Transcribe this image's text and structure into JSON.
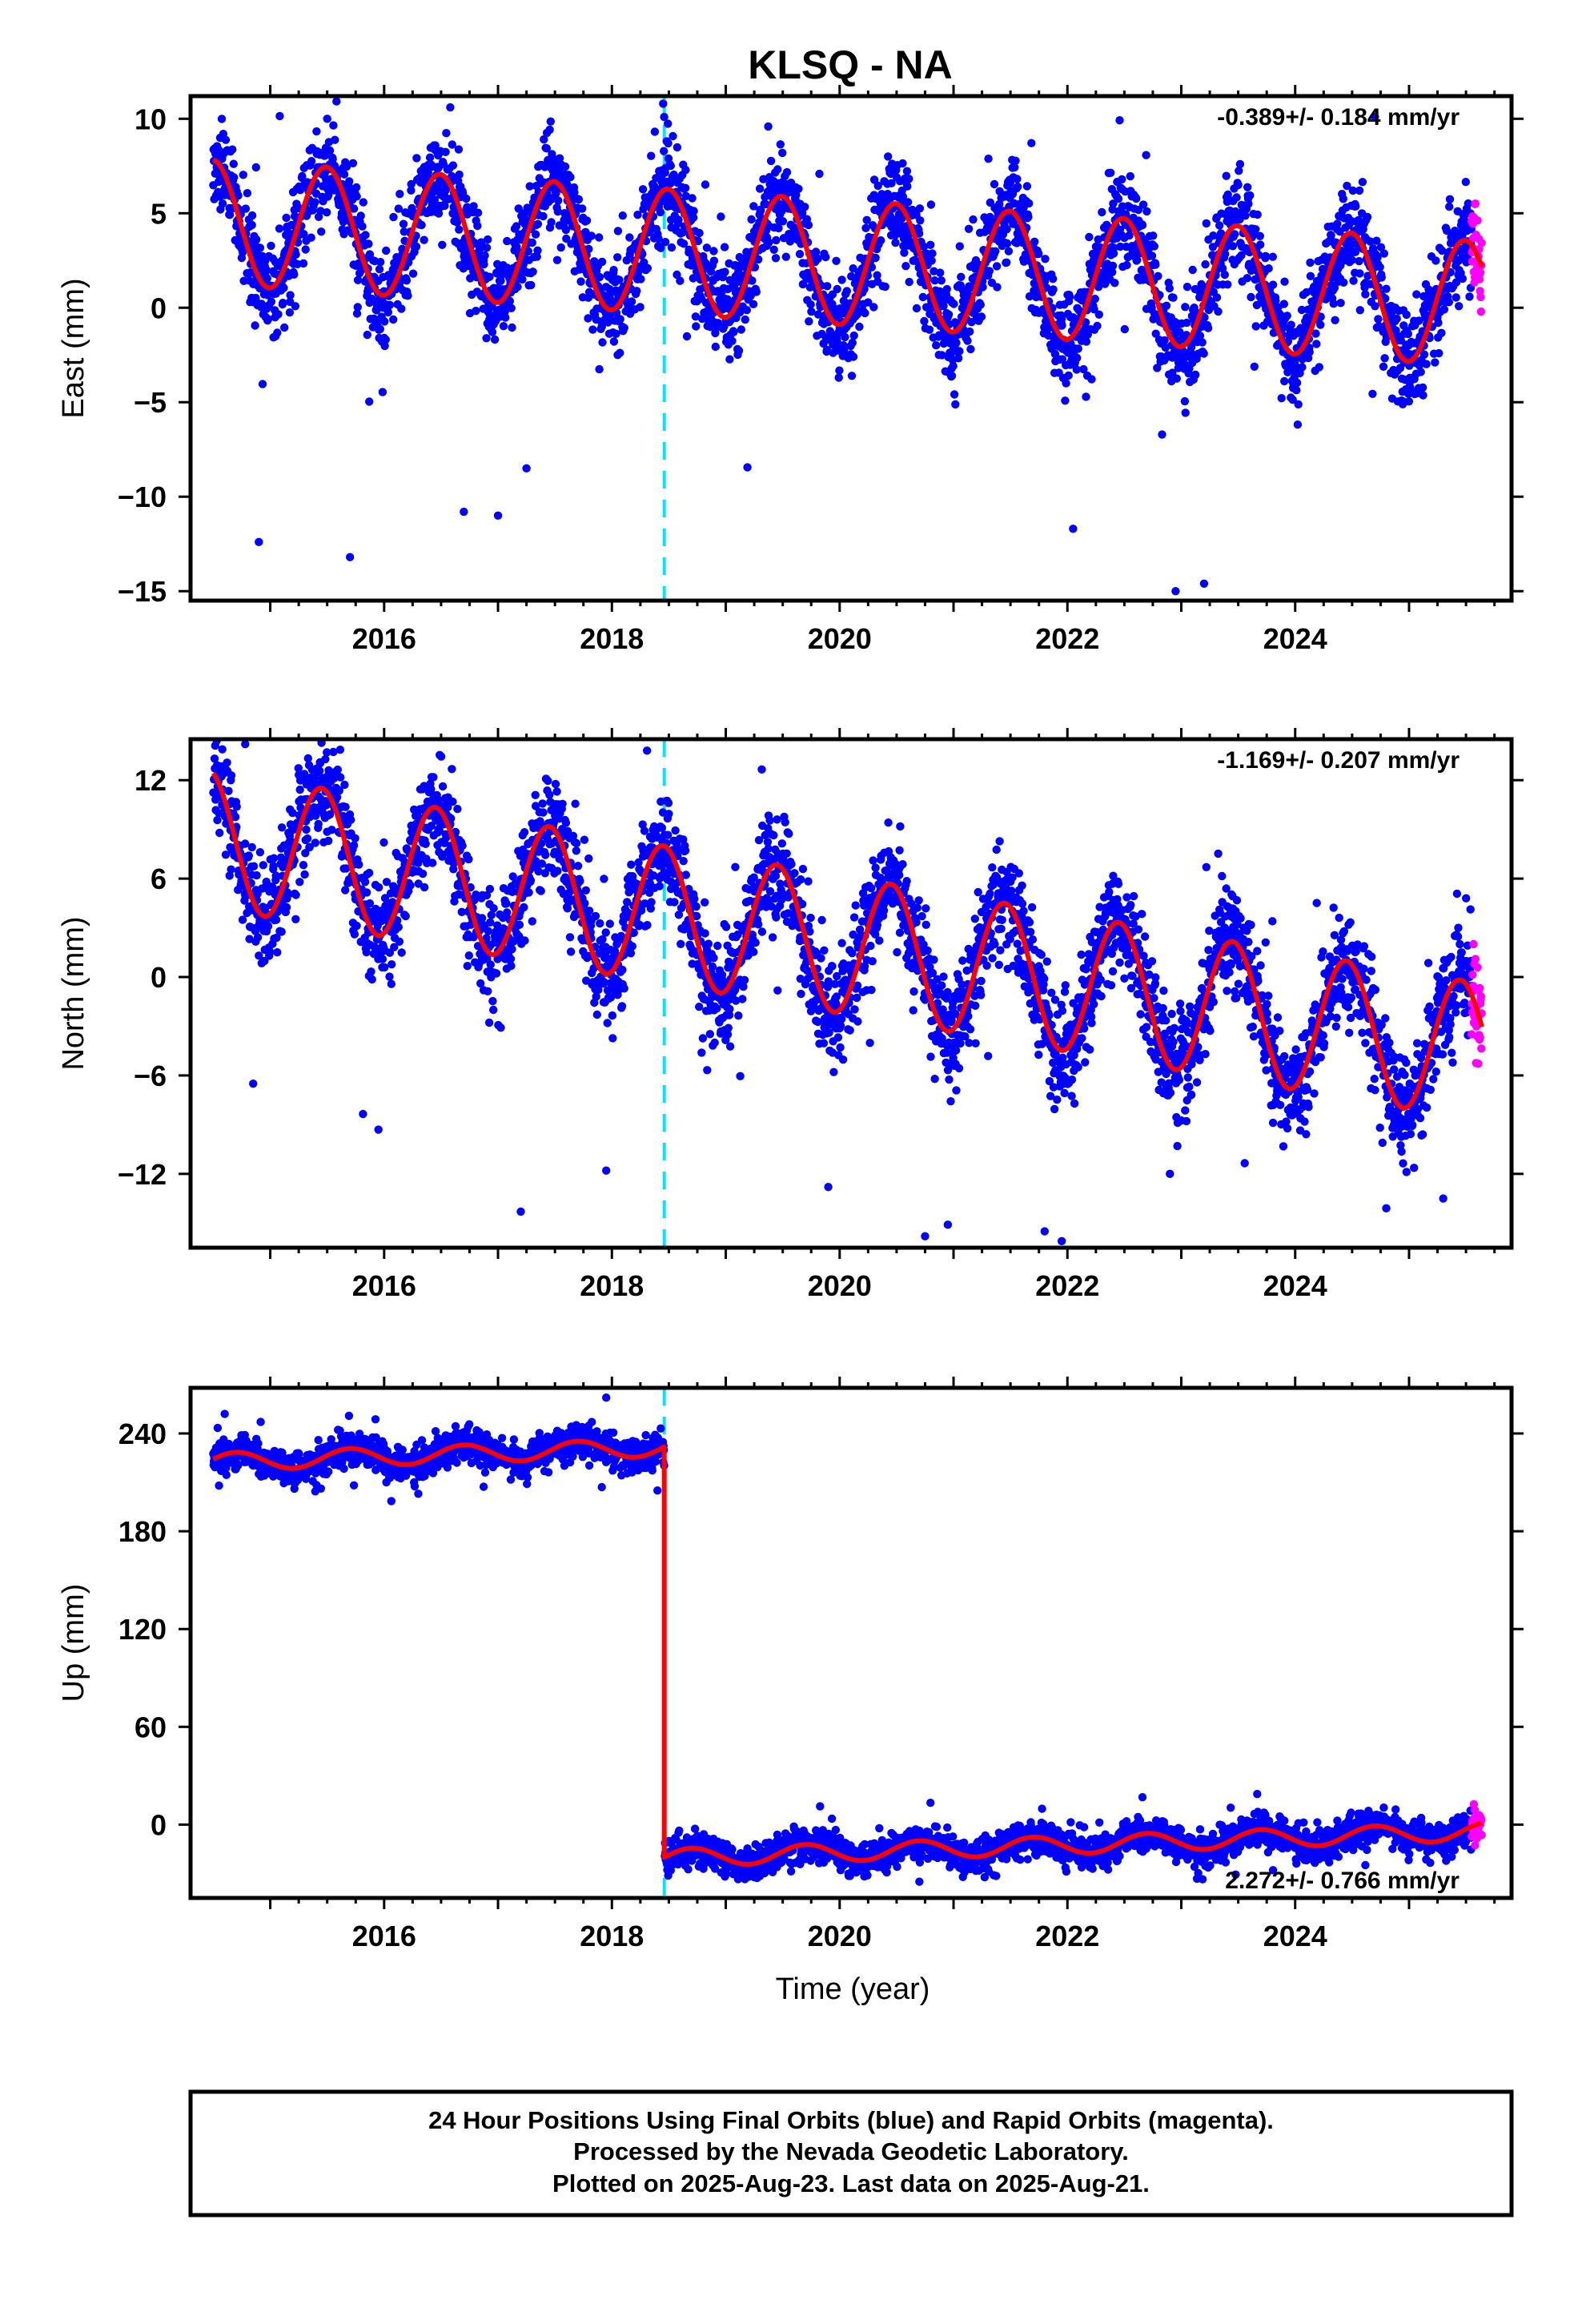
{
  "title": "KLSQ - NA",
  "colors": {
    "final_orbits": "#0000ff",
    "rapid_orbits": "#ff00ff",
    "model": "#ff0000",
    "offset_line": "#00e5ff"
  },
  "chart_data": [
    {
      "type": "scatter",
      "ylabel": "East (mm)",
      "xlabel": "",
      "xlim": [
        2014.3,
        2025.9
      ],
      "ylim": [
        -15.5,
        11.2
      ],
      "xticks": [
        "2016",
        "2018",
        "2020",
        "2022",
        "2024"
      ],
      "yticks": [
        "10",
        "5",
        "0",
        "−5",
        "−10",
        "−15"
      ],
      "rate": "-0.389+/- 0.184 mm/yr",
      "rate_position": "top-right",
      "offset_epoch": 2018.46,
      "model": {
        "trend_mm_per_yr": -0.389,
        "intercept_mm": 2.4,
        "annual_amplitude_mm": 3.3,
        "annual_phase_year": 2015.49,
        "offset_mm": 0
      },
      "scatter_sd_mm": 1.3,
      "series": [
        {
          "name": "Final Orbits (blue)",
          "x_range": [
            2014.5,
            2025.55
          ],
          "daily": true
        },
        {
          "name": "Rapid Orbits (magenta)",
          "x_range": [
            2025.55,
            2025.64
          ],
          "daily": true
        }
      ],
      "outliers": [
        {
          "x": 2014.9,
          "y": -12.4
        },
        {
          "x": 2015.7,
          "y": -13.2
        },
        {
          "x": 2016.7,
          "y": -10.8
        },
        {
          "x": 2017.0,
          "y": -11.0
        },
        {
          "x": 2018.45,
          "y": 10.8
        },
        {
          "x": 2015.5,
          "y": 10.0
        },
        {
          "x": 2022.95,
          "y": -15.0
        },
        {
          "x": 2023.2,
          "y": -14.6
        },
        {
          "x": 2023.5,
          "y": 6.5
        },
        {
          "x": 2024.7,
          "y": 10.1
        },
        {
          "x": 2017.25,
          "y": -8.5
        },
        {
          "x": 2022.05,
          "y": -11.7
        }
      ]
    },
    {
      "type": "scatter",
      "ylabel": "North (mm)",
      "xlabel": "",
      "xlim": [
        2014.3,
        2025.9
      ],
      "ylim": [
        -16.5,
        14.5
      ],
      "xticks": [
        "2016",
        "2018",
        "2020",
        "2022",
        "2024"
      ],
      "yticks": [
        "12",
        "6",
        "0",
        "−6",
        "−12"
      ],
      "rate": "-1.169+/- 0.207 mm/yr",
      "rate_position": "top-right",
      "offset_epoch": 2018.46,
      "model": {
        "trend_mm_per_yr": -1.169,
        "intercept_mm": 2.0,
        "annual_amplitude_mm": 4.2,
        "annual_phase_year": 2015.45,
        "offset_mm": 0
      },
      "scatter_sd_mm": 1.6,
      "series": [
        {
          "name": "Final Orbits (blue)",
          "x_range": [
            2014.5,
            2025.55
          ],
          "daily": true
        },
        {
          "name": "Rapid Orbits (magenta)",
          "x_range": [
            2025.55,
            2025.64
          ],
          "daily": true
        }
      ],
      "outliers": [
        {
          "x": 2014.85,
          "y": -6.5
        },
        {
          "x": 2015.95,
          "y": -9.3
        },
        {
          "x": 2017.2,
          "y": -14.3
        },
        {
          "x": 2017.95,
          "y": -11.8
        },
        {
          "x": 2019.9,
          "y": -12.8
        },
        {
          "x": 2020.75,
          "y": -15.8
        },
        {
          "x": 2020.95,
          "y": -15.1
        },
        {
          "x": 2021.8,
          "y": -15.5
        },
        {
          "x": 2021.95,
          "y": -16.1
        },
        {
          "x": 2024.8,
          "y": -14.1
        },
        {
          "x": 2014.78,
          "y": 14.2
        },
        {
          "x": 2019.45,
          "y": 9.6
        },
        {
          "x": 2023.8,
          "y": 3.4
        },
        {
          "x": 2022.9,
          "y": -12.0
        },
        {
          "x": 2025.3,
          "y": -13.5
        }
      ]
    },
    {
      "type": "scatter",
      "ylabel": "Up (mm)",
      "xlabel": "Time (year)",
      "xlim": [
        2014.3,
        2025.9
      ],
      "ylim": [
        -45,
        268
      ],
      "xticks": [
        "2016",
        "2018",
        "2020",
        "2022",
        "2024"
      ],
      "yticks": [
        "240",
        "180",
        "120",
        "60",
        "0"
      ],
      "rate": "2.272+/- 0.766 mm/yr",
      "rate_position": "bottom-right",
      "offset_epoch": 2018.46,
      "model": {
        "trend_mm_per_yr": 2.272,
        "intercept_mm": -17.0,
        "annual_amplitude_mm": 5.5,
        "annual_phase_year": 2014.7,
        "offset_mm": 252.0
      },
      "scatter_sd_mm": 5.0,
      "series": [
        {
          "name": "Final Orbits (blue)",
          "x_range": [
            2014.5,
            2025.55
          ],
          "daily": true
        },
        {
          "name": "Rapid Orbits (magenta)",
          "x_range": [
            2025.55,
            2025.64
          ],
          "daily": true
        }
      ],
      "outliers": [
        {
          "x": 2014.55,
          "y": 208
        },
        {
          "x": 2016.3,
          "y": 203
        },
        {
          "x": 2018.4,
          "y": 205
        },
        {
          "x": 2019.2,
          "y": -32
        },
        {
          "x": 2020.7,
          "y": -35
        },
        {
          "x": 2014.6,
          "y": 252
        },
        {
          "x": 2017.95,
          "y": 262
        }
      ]
    }
  ],
  "footer": {
    "line1": "24 Hour Positions Using Final Orbits (blue) and Rapid Orbits (magenta).",
    "line2": "Processed by the Nevada Geodetic Laboratory.",
    "line3": "Plotted on 2025-Aug-23. Last data on 2025-Aug-21."
  }
}
